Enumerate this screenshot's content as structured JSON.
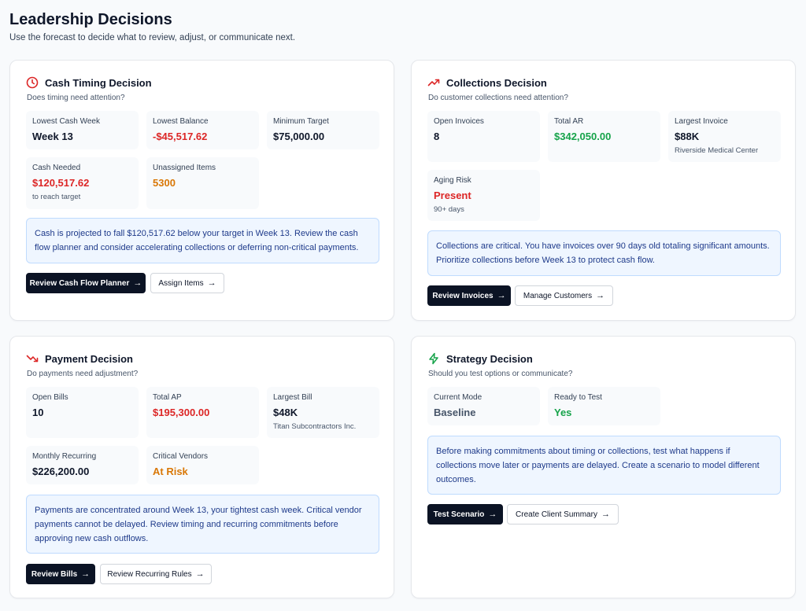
{
  "page": {
    "title": "Leadership Decisions",
    "subtitle": "Use the forecast to decide what to review, adjust, or communicate next."
  },
  "colors": {
    "red": "#dc2626",
    "orange": "#d97706",
    "green": "#16a34a",
    "primary": "#0b1324",
    "alert_bg": "#eff6ff"
  },
  "cash": {
    "icon": "clock-icon",
    "title": "Cash Timing Decision",
    "subtitle": "Does timing need attention?",
    "stats": [
      {
        "label": "Lowest Cash Week",
        "value": "Week 13",
        "note": ""
      },
      {
        "label": "Lowest Balance",
        "value": "-$45,517.62",
        "note": ""
      },
      {
        "label": "Minimum Target",
        "value": "$75,000.00",
        "note": ""
      },
      {
        "label": "Cash Needed",
        "value": "$120,517.62",
        "note": "to reach target"
      },
      {
        "label": "Unassigned Items",
        "value": "5300",
        "note": ""
      }
    ],
    "alert": "Cash is projected to fall $120,517.62 below your target in Week 13. Review the cash flow planner and consider accelerating collections or deferring non-critical payments.",
    "primary_button": "Review Cash Flow Planner",
    "secondary_button": "Assign Items"
  },
  "collections": {
    "icon": "trending-up-icon",
    "title": "Collections Decision",
    "subtitle": "Do customer collections need attention?",
    "stats": [
      {
        "label": "Open Invoices",
        "value": "8",
        "note": ""
      },
      {
        "label": "Total AR",
        "value": "$342,050.00",
        "note": ""
      },
      {
        "label": "Largest Invoice",
        "value": "$88K",
        "note": "Riverside Medical Center"
      },
      {
        "label": "Aging Risk",
        "value": "Present",
        "note": "90+ days"
      }
    ],
    "alert": "Collections are critical. You have invoices over 90 days old totaling significant amounts. Prioritize collections before Week 13 to protect cash flow.",
    "primary_button": "Review Invoices",
    "secondary_button": "Manage Customers"
  },
  "payment": {
    "icon": "trending-down-icon",
    "title": "Payment Decision",
    "subtitle": "Do payments need adjustment?",
    "stats": [
      {
        "label": "Open Bills",
        "value": "10",
        "note": ""
      },
      {
        "label": "Total AP",
        "value": "$195,300.00",
        "note": ""
      },
      {
        "label": "Largest Bill",
        "value": "$48K",
        "note": "Titan Subcontractors Inc."
      },
      {
        "label": "Monthly Recurring",
        "value": "$226,200.00",
        "note": ""
      },
      {
        "label": "Critical Vendors",
        "value": "At Risk",
        "note": ""
      }
    ],
    "alert": "Payments are concentrated around Week 13, your tightest cash week. Critical vendor payments cannot be delayed. Review timing and recurring commitments before approving new cash outflows.",
    "primary_button": "Review Bills",
    "secondary_button": "Review Recurring Rules"
  },
  "strategy": {
    "icon": "lightning-bolt-icon",
    "title": "Strategy Decision",
    "subtitle": "Should you test options or communicate?",
    "stats": [
      {
        "label": "Current Mode",
        "value": "Baseline",
        "note": ""
      },
      {
        "label": "Ready to Test",
        "value": "Yes",
        "note": ""
      }
    ],
    "alert": "Before making commitments about timing or collections, test what happens if collections move later or payments are delayed. Create a scenario to model different outcomes.",
    "primary_button": "Test Scenario",
    "secondary_button": "Create Client Summary"
  },
  "arrow_icon": "→"
}
